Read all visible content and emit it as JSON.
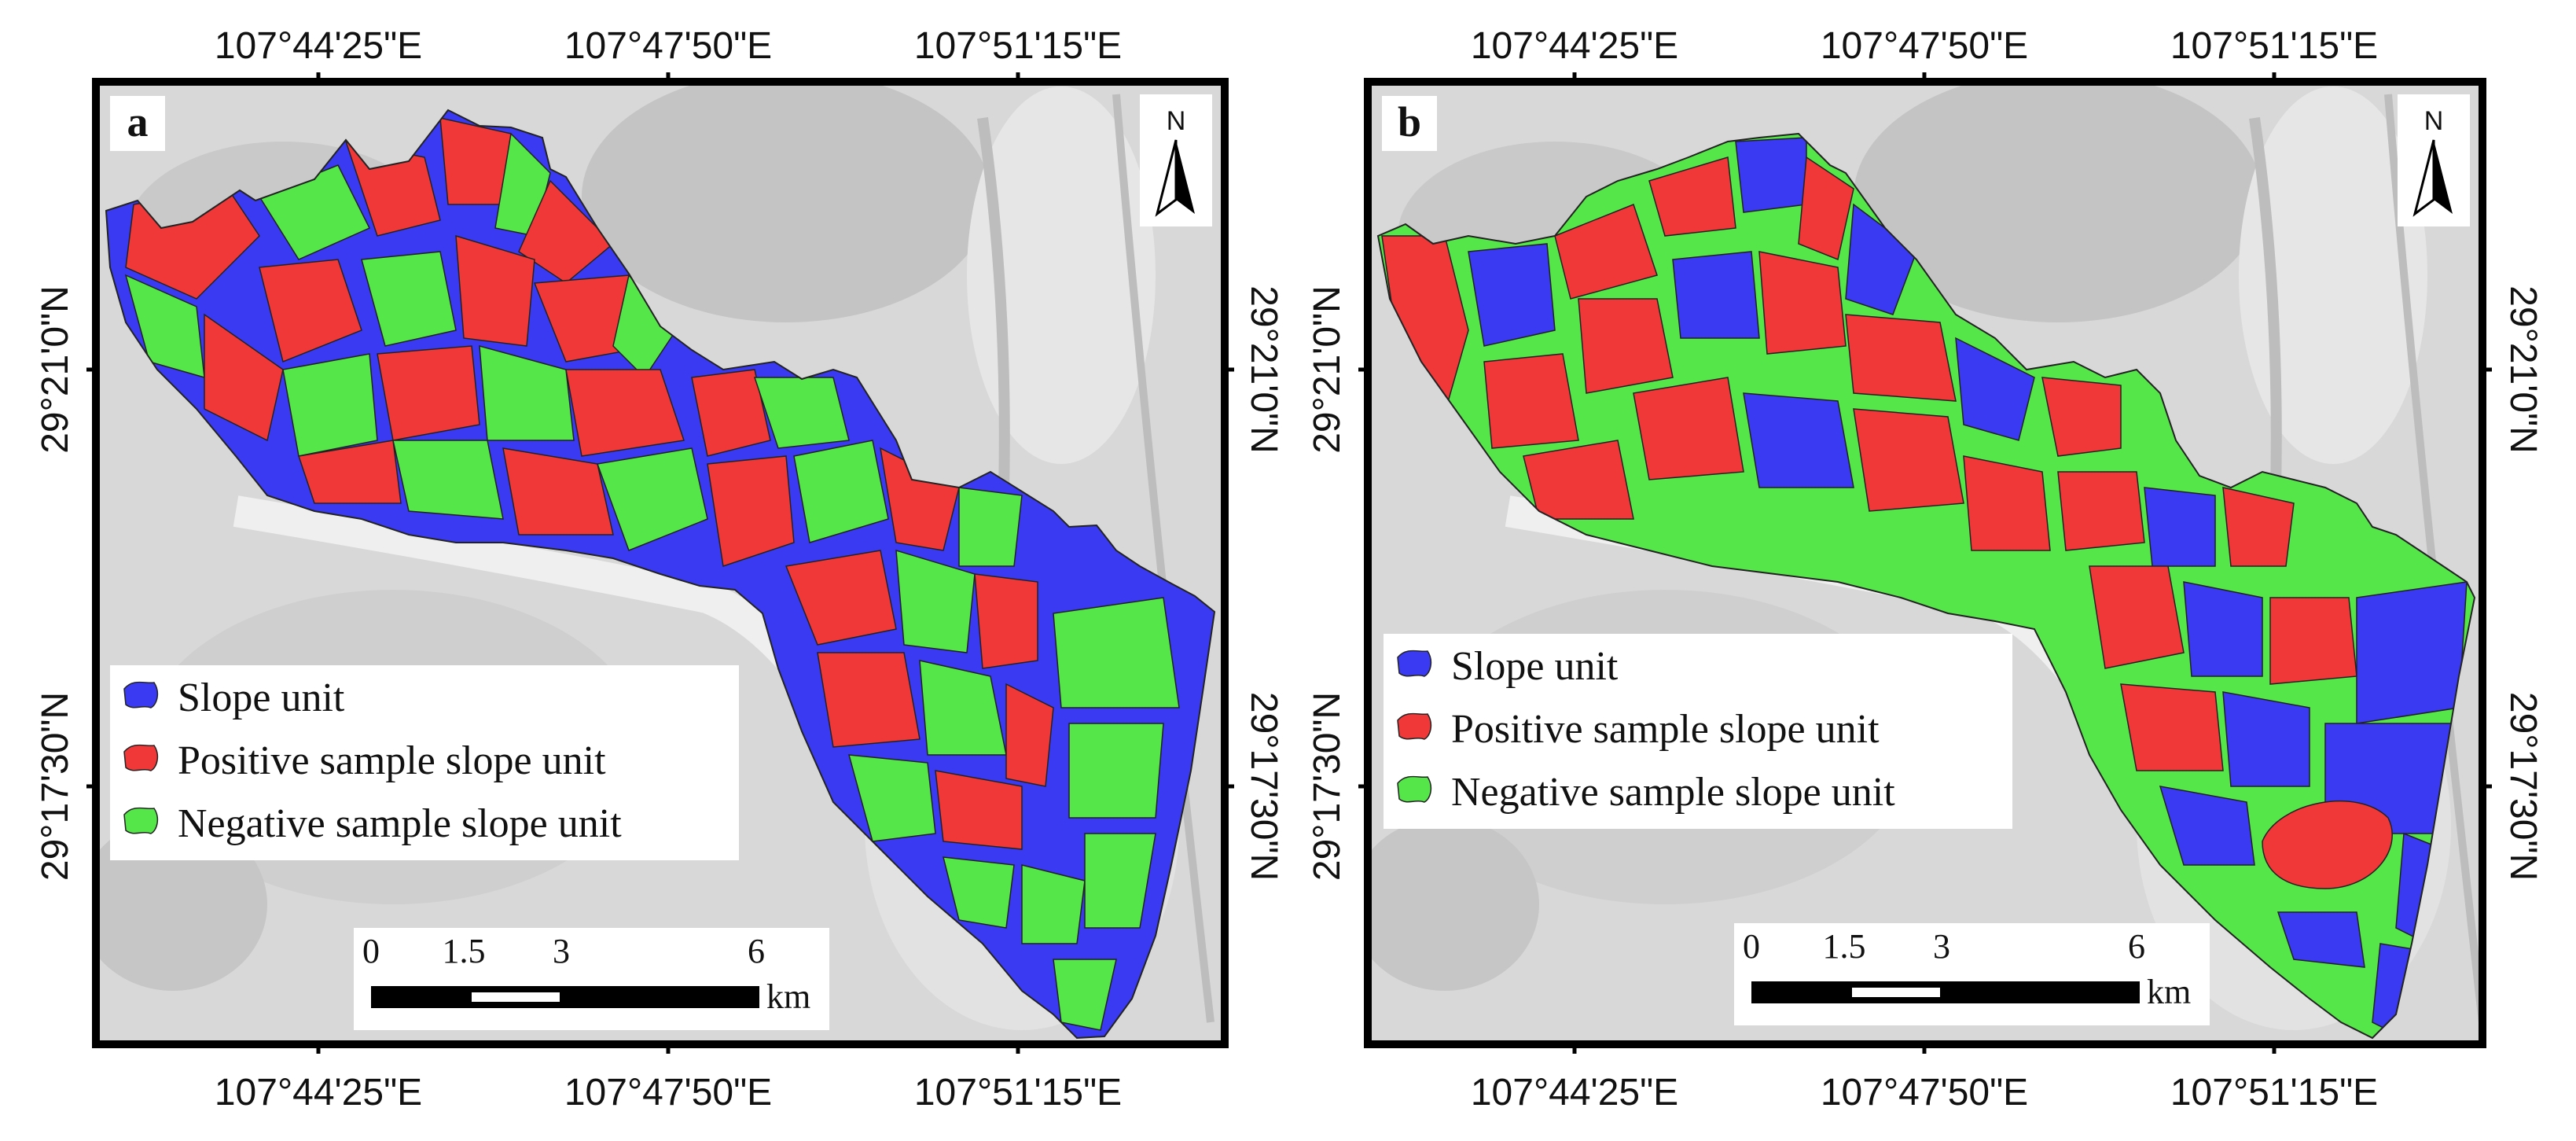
{
  "colors": {
    "slope_unit": "#3a3af2",
    "positive": "#f03838",
    "negative": "#55e649",
    "frame": "#000000",
    "hillshade": "#d9d9d9"
  },
  "icons": [
    "north-arrow-icon",
    "blue-blob-icon",
    "red-blob-icon",
    "green-blob-icon"
  ],
  "panels": [
    {
      "label": "a",
      "top_ticks": [
        "107°44'25\"E",
        "107°47'50\"E",
        "107°51'15\"E"
      ],
      "bottom_ticks": [
        "107°44'25\"E",
        "107°47'50\"E",
        "107°51'15\"E"
      ],
      "left_ticks": [
        "29°21'0\"N",
        "29°17'30\"N"
      ],
      "right_ticks": [
        "29°21'0\"N",
        "29°17'30\"N"
      ],
      "north": "N",
      "legend": [
        "Slope unit",
        "Positive sample slope unit",
        "Negative sample slope unit"
      ],
      "scale": {
        "labels": [
          "0",
          "1.5",
          "3",
          "6"
        ],
        "unit": "km"
      }
    },
    {
      "label": "b",
      "top_ticks": [
        "107°44'25\"E",
        "107°47'50\"E",
        "107°51'15\"E"
      ],
      "bottom_ticks": [
        "107°44'25\"E",
        "107°47'50\"E",
        "107°51'15\"E"
      ],
      "left_ticks": [
        "29°21'0\"N",
        "29°17'30\"N"
      ],
      "right_ticks": [
        "29°21'0\"N",
        "29°17'30\"N"
      ],
      "north": "N",
      "legend": [
        "Slope unit",
        "Positive sample slope unit",
        "Negative sample slope unit"
      ],
      "scale": {
        "labels": [
          "0",
          "1.5",
          "3",
          "6"
        ],
        "unit": "km"
      }
    }
  ]
}
